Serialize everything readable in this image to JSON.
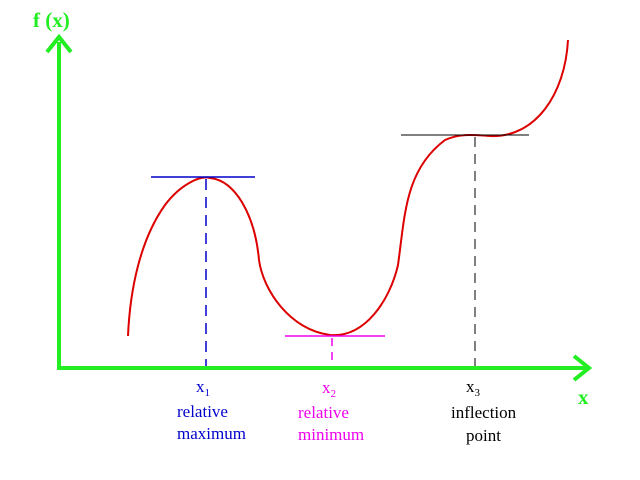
{
  "colors": {
    "axis": "#22ee22",
    "curve": "#dd0000",
    "maximum": "#0000cc",
    "minimum": "#ee00ee",
    "inflection": "#000000"
  },
  "axes": {
    "y_label": "f (x)",
    "x_label": "x"
  },
  "points": [
    {
      "var": "x",
      "sub": "1",
      "line1": "relative",
      "line2": "maximum",
      "color_key": "maximum"
    },
    {
      "var": "x",
      "sub": "2",
      "line1": "relative",
      "line2": "minimum",
      "color_key": "minimum"
    },
    {
      "var": "x",
      "sub": "3",
      "line1": "inflection",
      "line2": "point",
      "color_key": "inflection"
    }
  ]
}
